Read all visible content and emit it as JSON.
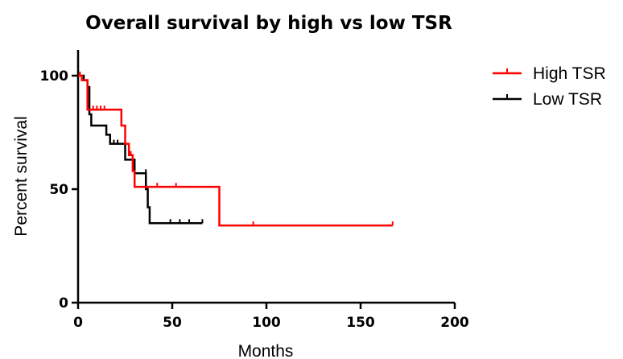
{
  "chart_data": {
    "type": "line",
    "subtype": "kaplan-meier step",
    "title": "Overall survival by high vs low TSR",
    "xlabel": "Months",
    "ylabel": "Percent survival",
    "xlim": [
      0,
      200
    ],
    "ylim": [
      0,
      100
    ],
    "x_ticks": [
      0,
      50,
      100,
      150,
      200
    ],
    "y_ticks": [
      0,
      50,
      100
    ],
    "x_tick_labels": [
      "0",
      "50",
      "100",
      "150",
      "200"
    ],
    "y_tick_labels": [
      "0",
      "50",
      "100"
    ],
    "grid": false,
    "legend_position": "top-right",
    "series": [
      {
        "name": "High TSR",
        "color": "#ff0000",
        "steps": [
          [
            0,
            100
          ],
          [
            2,
            98
          ],
          [
            5,
            85
          ],
          [
            20,
            85
          ],
          [
            23,
            78
          ],
          [
            25,
            70
          ],
          [
            27,
            65
          ],
          [
            29,
            58
          ],
          [
            30,
            51
          ],
          [
            75,
            51
          ],
          [
            75,
            34
          ],
          [
            167,
            34
          ]
        ],
        "censors": [
          [
            1,
            100
          ],
          [
            8,
            85
          ],
          [
            10,
            85
          ],
          [
            12,
            85
          ],
          [
            14,
            85
          ],
          [
            28,
            65
          ],
          [
            42,
            51
          ],
          [
            52,
            51
          ],
          [
            93,
            34
          ],
          [
            167,
            34
          ]
        ]
      },
      {
        "name": "Low TSR",
        "color": "#000000",
        "steps": [
          [
            0,
            100
          ],
          [
            3,
            98
          ],
          [
            5,
            95
          ],
          [
            6,
            83
          ],
          [
            7,
            78
          ],
          [
            13,
            78
          ],
          [
            15,
            74
          ],
          [
            17,
            70
          ],
          [
            24,
            70
          ],
          [
            25,
            63
          ],
          [
            29,
            63
          ],
          [
            30,
            57
          ],
          [
            34,
            57
          ],
          [
            36,
            50
          ],
          [
            37,
            42
          ],
          [
            38,
            35
          ],
          [
            66,
            35
          ]
        ],
        "censors": [
          [
            19,
            70
          ],
          [
            21,
            70
          ],
          [
            36,
            57
          ],
          [
            49,
            35
          ],
          [
            54,
            35
          ],
          [
            59,
            35
          ],
          [
            66,
            35
          ]
        ]
      }
    ]
  }
}
